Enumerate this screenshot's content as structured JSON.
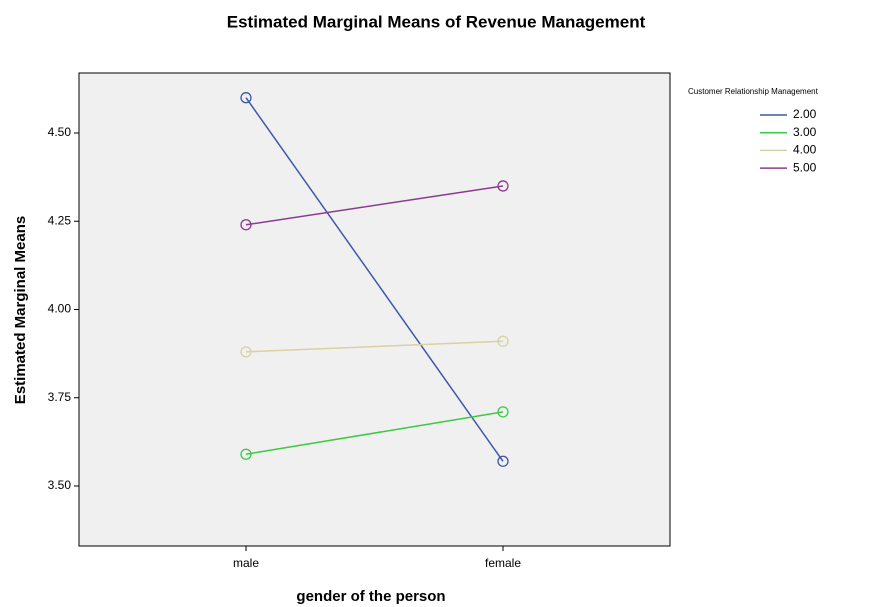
{
  "chart_data": {
    "type": "line",
    "title": "Estimated Marginal Means of Revenue Management",
    "x_label": "gender of the person",
    "y_label": "Estimated Marginal Means",
    "legend_title": "Customer Relationship Management",
    "categories": [
      "male",
      "female"
    ],
    "series": [
      {
        "name": "2.00",
        "color": "#3e58ac",
        "values": [
          4.6,
          3.57
        ]
      },
      {
        "name": "3.00",
        "color": "#3ec843",
        "values": [
          3.59,
          3.71
        ]
      },
      {
        "name": "4.00",
        "color": "#d7d2a0",
        "values": [
          3.88,
          3.91
        ]
      },
      {
        "name": "5.00",
        "color": "#8b3b8f",
        "values": [
          4.24,
          4.35
        ]
      }
    ],
    "ylim": [
      3.33,
      4.67
    ],
    "yticks": [
      {
        "value": 3.5,
        "label": "3.50"
      },
      {
        "value": 3.75,
        "label": "3.75"
      },
      {
        "value": 4.0,
        "label": "4.00"
      },
      {
        "value": 4.25,
        "label": "4.25"
      },
      {
        "value": 4.5,
        "label": "4.50"
      }
    ],
    "legend": "right"
  }
}
